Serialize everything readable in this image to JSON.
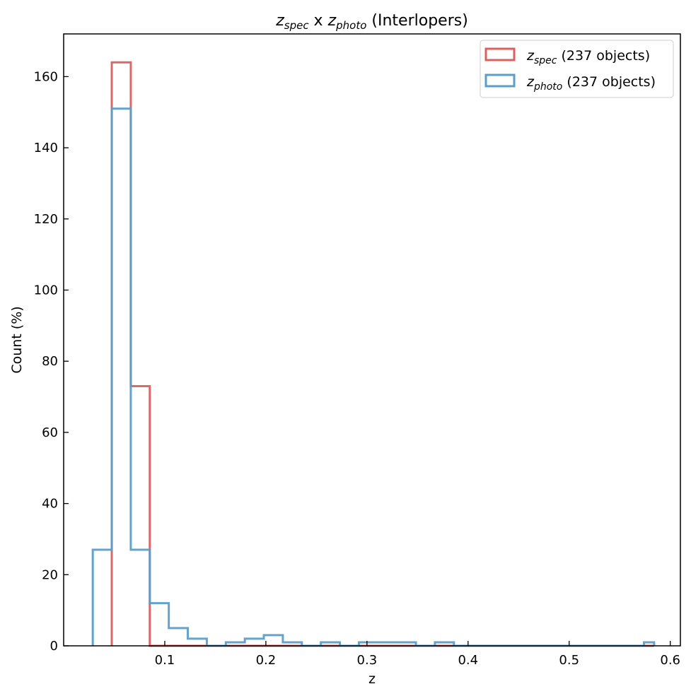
{
  "chart_data": {
    "type": "histogram-step",
    "title": {
      "var": "z",
      "sub_a": "spec",
      "mid": " x ",
      "sub_b": "photo",
      "tail": " (Interlopers)"
    },
    "xlabel": "z",
    "ylabel": "Count (%)",
    "xlim": [
      0.0,
      0.61
    ],
    "ylim": [
      0,
      172
    ],
    "xticks": [
      0.1,
      0.2,
      0.3,
      0.4,
      0.5,
      0.6
    ],
    "xtick_labels": [
      "0.1",
      "0.2",
      "0.3",
      "0.4",
      "0.5",
      "0.6"
    ],
    "yticks": [
      0,
      20,
      40,
      60,
      80,
      100,
      120,
      140,
      160
    ],
    "ytick_labels": [
      "0",
      "20",
      "40",
      "60",
      "80",
      "100",
      "120",
      "140",
      "160"
    ],
    "grid": false,
    "legend_position": "top-right",
    "series": [
      {
        "name_var": "z",
        "name_sub": "spec",
        "name_tail": " (237 objects)",
        "color": "#d9605e",
        "edges": [
          0.0476,
          0.0664,
          0.0852,
          0.104,
          0.1228,
          0.1416,
          0.1604,
          0.1792,
          0.198,
          0.2168,
          0.2356,
          0.2544,
          0.2732,
          0.292,
          0.3108,
          0.3296,
          0.3484,
          0.3672,
          0.386,
          0.4048,
          0.4236,
          0.4424,
          0.4612,
          0.48,
          0.4988,
          0.5176,
          0.5364,
          0.5552,
          0.574,
          0.584
        ],
        "counts": [
          164,
          73,
          0,
          0,
          0,
          0,
          0,
          0,
          0,
          0,
          0,
          0,
          0,
          0,
          0,
          0,
          0,
          0,
          0,
          0,
          0,
          0,
          0,
          0,
          0,
          0,
          0,
          0,
          0
        ]
      },
      {
        "name_var": "z",
        "name_sub": "photo",
        "name_tail": " (237 objects)",
        "color": "#5b9ec9",
        "edges": [
          0.0288,
          0.0476,
          0.0664,
          0.0852,
          0.104,
          0.1228,
          0.1416,
          0.1604,
          0.1792,
          0.198,
          0.2168,
          0.2356,
          0.2544,
          0.2732,
          0.292,
          0.3108,
          0.3296,
          0.3484,
          0.3672,
          0.386,
          0.4048,
          0.4236,
          0.4424,
          0.4612,
          0.48,
          0.4988,
          0.5176,
          0.5364,
          0.5552,
          0.574,
          0.584
        ],
        "counts": [
          27,
          151,
          27,
          12,
          5,
          2,
          0,
          1,
          2,
          3,
          1,
          0,
          1,
          0,
          1,
          1,
          1,
          0,
          1,
          0,
          0,
          0,
          0,
          0,
          0,
          0,
          0,
          0,
          0,
          1
        ]
      }
    ]
  }
}
